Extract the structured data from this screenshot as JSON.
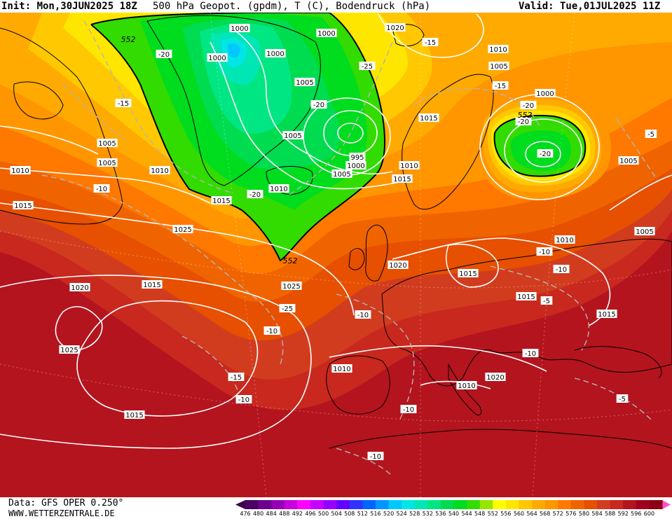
{
  "header": {
    "init": "Init: Mon,30JUN2025 18Z",
    "title": "500 hPa Geopot. (gpdm), T (C), Bodendruck (hPa)",
    "valid": "Valid: Tue,01JUL2025 11Z"
  },
  "footer": {
    "data_source": "Data: GFS OPER 0.250°",
    "website": "WWW.WETTERZENTRALE.DE"
  },
  "legend": {
    "values": [
      "476",
      "480",
      "484",
      "488",
      "492",
      "496",
      "500",
      "504",
      "508",
      "512",
      "516",
      "520",
      "524",
      "528",
      "532",
      "536",
      "540",
      "544",
      "548",
      "552",
      "556",
      "560",
      "564",
      "568",
      "572",
      "576",
      "580",
      "584",
      "588",
      "592",
      "596",
      "600"
    ],
    "colors": [
      "#4b0064",
      "#6e0090",
      "#9600b4",
      "#c800dc",
      "#ff00ff",
      "#c800ff",
      "#9600ff",
      "#6400ff",
      "#3232ff",
      "#0064ff",
      "#0096ff",
      "#00c8ff",
      "#00e6e6",
      "#00e6b4",
      "#00e682",
      "#00dc50",
      "#00dc1e",
      "#32dc00",
      "#96e600",
      "#ffff00",
      "#ffe600",
      "#ffc800",
      "#ffaa00",
      "#ff9600",
      "#ff7800",
      "#f06400",
      "#e65000",
      "#d23c1e",
      "#c8281e",
      "#b4141e",
      "#a0001e",
      "#8c0014"
    ],
    "left_arrow_color": "#3c0050",
    "right_arrow_color": "#ff50c8"
  },
  "colors": {
    "pressure_isobar": "#ffffff",
    "temperature_isoline": "#b4b4b4",
    "gpdm_552_line": "#000000",
    "coastline": "#000000"
  },
  "pressure_labels": [
    "1000",
    "1000",
    "1000",
    "1005",
    "1005",
    "1000",
    "995",
    "1000",
    "1005",
    "1010",
    "1005",
    "1005",
    "1010",
    "1010",
    "1015",
    "1015",
    "1020",
    "1010",
    "1005",
    "1015",
    "1010",
    "1000",
    "1005",
    "1005",
    "1010",
    "1015",
    "1020",
    "1025",
    "1020",
    "1015",
    "1025",
    "1015",
    "1025",
    "1015",
    "1015",
    "1010",
    "1020",
    "1010",
    "1015"
  ],
  "temperature_labels": [
    "-20",
    "-15",
    "-25",
    "-20",
    "-20",
    "-15",
    "-10",
    "-20",
    "-20",
    "-20",
    "-25",
    "-15",
    "-10",
    "-10",
    "-15",
    "-10",
    "-10",
    "-5",
    "-5",
    "-5",
    "-10",
    "-10",
    "-10",
    "-10"
  ],
  "gpdm_labels": [
    "552",
    "552",
    "552"
  ]
}
